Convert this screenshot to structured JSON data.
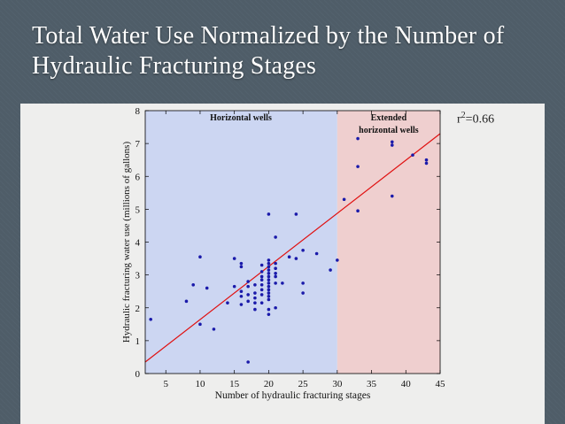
{
  "slide": {
    "title": "Total Water Use Normalized by the Number of Hydraulic Fracturing Stages",
    "fit_label_base": "r",
    "fit_label_power": "2",
    "fit_label_value": "=0.66"
  },
  "colors": {
    "background": "#4f5d68",
    "panel": "#eeeeed",
    "horizontal_region": "#ccd6f2",
    "extended_region": "#efcfcf",
    "points": "#1a1aaa",
    "fit_line": "#e01010"
  },
  "chart_data": {
    "type": "scatter",
    "title": "",
    "xlabel": "Number of hydraulic fracturing stages",
    "ylabel": "Hydraulic fracturing water use (millions of gallons)",
    "xlim": [
      2,
      45
    ],
    "ylim": [
      0,
      8
    ],
    "xticks": [
      5,
      10,
      15,
      20,
      25,
      30,
      35,
      40,
      45
    ],
    "yticks": [
      0,
      1,
      2,
      3,
      4,
      5,
      6,
      7,
      8
    ],
    "grid": false,
    "regions": [
      {
        "label_lines": [
          "Horizontal wells"
        ],
        "x_start": 2,
        "x_end": 30
      },
      {
        "label_lines": [
          "Extended",
          "horizontal wells"
        ],
        "x_start": 30,
        "x_end": 45
      }
    ],
    "fit_line": {
      "x": [
        2,
        45
      ],
      "y": [
        0.35,
        7.3
      ]
    },
    "r_squared": "0.66",
    "points": [
      [
        2.8,
        1.65
      ],
      [
        8,
        2.2
      ],
      [
        9,
        2.7
      ],
      [
        10,
        3.55
      ],
      [
        10,
        1.5
      ],
      [
        11,
        2.6
      ],
      [
        12,
        1.35
      ],
      [
        14,
        2.15
      ],
      [
        15,
        3.5
      ],
      [
        15,
        2.65
      ],
      [
        16,
        3.25
      ],
      [
        16,
        3.35
      ],
      [
        16,
        2.5
      ],
      [
        16,
        2.35
      ],
      [
        16,
        2.1
      ],
      [
        17,
        2.8
      ],
      [
        17,
        2.65
      ],
      [
        17,
        2.4
      ],
      [
        17,
        2.2
      ],
      [
        17,
        0.35
      ],
      [
        18,
        2.7
      ],
      [
        18,
        2.45
      ],
      [
        18,
        2.3
      ],
      [
        18,
        2.15
      ],
      [
        18,
        1.95
      ],
      [
        19,
        3.3
      ],
      [
        19,
        3.1
      ],
      [
        19,
        2.95
      ],
      [
        19,
        2.85
      ],
      [
        19,
        2.7
      ],
      [
        19,
        2.55
      ],
      [
        19,
        2.4
      ],
      [
        19,
        2.15
      ],
      [
        20,
        4.85
      ],
      [
        20,
        3.45
      ],
      [
        20,
        3.35
      ],
      [
        20,
        3.25
      ],
      [
        20,
        3.15
      ],
      [
        20,
        3.05
      ],
      [
        20,
        2.95
      ],
      [
        20,
        2.85
      ],
      [
        20,
        2.75
      ],
      [
        20,
        2.65
      ],
      [
        20,
        2.55
      ],
      [
        20,
        2.45
      ],
      [
        20,
        2.35
      ],
      [
        20,
        2.25
      ],
      [
        20,
        1.95
      ],
      [
        20,
        1.8
      ],
      [
        21,
        4.15
      ],
      [
        21,
        3.35
      ],
      [
        21,
        3.2
      ],
      [
        21,
        3.05
      ],
      [
        21,
        2.95
      ],
      [
        21,
        2.75
      ],
      [
        21,
        2.0
      ],
      [
        22,
        2.75
      ],
      [
        23,
        3.55
      ],
      [
        24,
        4.85
      ],
      [
        24,
        3.5
      ],
      [
        25,
        3.75
      ],
      [
        25,
        2.75
      ],
      [
        25,
        2.45
      ],
      [
        27,
        3.65
      ],
      [
        29,
        3.15
      ],
      [
        30,
        3.45
      ],
      [
        31,
        5.3
      ],
      [
        33,
        7.15
      ],
      [
        33,
        6.3
      ],
      [
        33,
        4.95
      ],
      [
        38,
        7.05
      ],
      [
        38,
        6.95
      ],
      [
        38,
        5.4
      ],
      [
        41,
        6.65
      ],
      [
        43,
        6.5
      ],
      [
        43,
        6.4
      ]
    ]
  }
}
